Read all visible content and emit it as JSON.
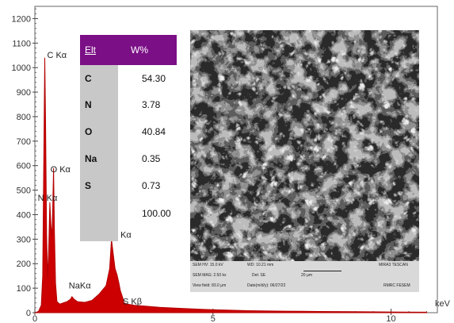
{
  "chart_data": {
    "type": "line",
    "title": "",
    "xlabel": "keV",
    "ylabel": "",
    "xlim": [
      0,
      11.3
    ],
    "ylim": [
      0,
      1250
    ],
    "x_ticks": [
      "0",
      "5",
      "10"
    ],
    "x_tick_values": [
      0,
      5,
      10
    ],
    "y_ticks": [
      "0",
      "100",
      "200",
      "300",
      "400",
      "500",
      "600",
      "700",
      "800",
      "900",
      "1000",
      "1100",
      "1200"
    ],
    "y_tick_values": [
      0,
      100,
      200,
      300,
      400,
      500,
      600,
      700,
      800,
      900,
      1000,
      1100,
      1200
    ],
    "series": [
      {
        "x": [
          0.0,
          0.1,
          0.18,
          0.22,
          0.25,
          0.277,
          0.3,
          0.33,
          0.36,
          0.39,
          0.42,
          0.45,
          0.48,
          0.5,
          0.525,
          0.55,
          0.58,
          0.62,
          0.7,
          0.8,
          0.9,
          1.0,
          1.041,
          1.1,
          1.2,
          1.4,
          1.6,
          1.8,
          2.0,
          2.1,
          2.15,
          2.2,
          2.25,
          2.307,
          2.36,
          2.4,
          2.47,
          2.5,
          2.6,
          2.8,
          3.0,
          3.5,
          4.0,
          4.5,
          5.0,
          5.5,
          6.0,
          7.0,
          8.0,
          9.0,
          10.0,
          11.0
        ],
        "y": [
          0,
          5,
          30,
          150,
          600,
          1040,
          780,
          320,
          140,
          260,
          450,
          360,
          310,
          420,
          590,
          330,
          120,
          45,
          35,
          40,
          45,
          55,
          65,
          55,
          45,
          42,
          50,
          75,
          110,
          180,
          300,
          240,
          180,
          155,
          120,
          90,
          60,
          40,
          35,
          30,
          28,
          22,
          18,
          15,
          12,
          10,
          8,
          6,
          5,
          4,
          3,
          2
        ]
      }
    ],
    "annotations": [
      {
        "text": "C Kα",
        "x": 0.277,
        "y": 1040
      },
      {
        "text": "O Kα",
        "x": 0.525,
        "y": 590
      },
      {
        "text": "N Kα",
        "x": 0.392,
        "y": 470
      },
      {
        "text": "NaKα",
        "x": 1.041,
        "y": 80
      },
      {
        "text": "S Kα",
        "x": 2.307,
        "y": 300
      },
      {
        "text": "S Kβ",
        "x": 2.47,
        "y": 60
      }
    ]
  },
  "table": {
    "header": {
      "elt": "Elt",
      "w": "W%"
    },
    "rows": [
      {
        "elt": "C",
        "w": "54.30"
      },
      {
        "elt": "N",
        "w": "3.78"
      },
      {
        "elt": "O",
        "w": "40.84"
      },
      {
        "elt": "Na",
        "w": "0.35"
      },
      {
        "elt": "S",
        "w": "0.73"
      },
      {
        "elt": "",
        "w": "100.00"
      }
    ]
  },
  "sem_info": {
    "hv": "SEM HV: 15.0 kV",
    "wd": "WD: 10.21 mm",
    "brand": "MIRA3 TESCAN",
    "mag": "SEM MAG: 2.50 kx",
    "det": "Det: SE",
    "scale": "20 μm",
    "view": "View field: 83.0 μm",
    "date": "Date(m/d/y): 06/27/22",
    "lab": "RMRC FESEM"
  },
  "colors": {
    "spectrum": "#cc0000",
    "table_header": "#7b0f86",
    "elt_column": "#c8c8c8"
  }
}
